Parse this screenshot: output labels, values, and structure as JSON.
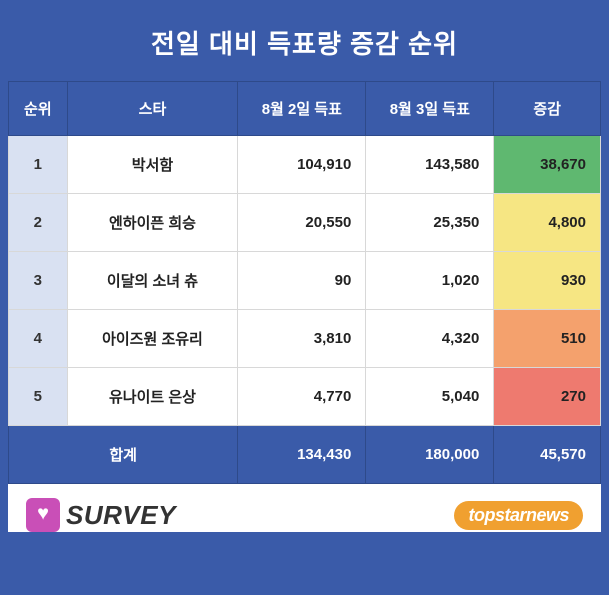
{
  "title": "전일 대비 득표량 증감 순위",
  "columns": {
    "rank": "순위",
    "star": "스타",
    "day1": "8월 2일 득표",
    "day2": "8월 3일 득표",
    "change": "증감"
  },
  "rows": [
    {
      "rank": "1",
      "star": "박서함",
      "day1": "104,910",
      "day2": "143,580",
      "change": "38,670",
      "change_bg": "#5fb870"
    },
    {
      "rank": "2",
      "star": "엔하이픈 희승",
      "day1": "20,550",
      "day2": "25,350",
      "change": "4,800",
      "change_bg": "#f6e683"
    },
    {
      "rank": "3",
      "star": "이달의 소녀 츄",
      "day1": "90",
      "day2": "1,020",
      "change": "930",
      "change_bg": "#f6e683"
    },
    {
      "rank": "4",
      "star": "아이즈원 조유리",
      "day1": "3,810",
      "day2": "4,320",
      "change": "510",
      "change_bg": "#f4a16d"
    },
    {
      "rank": "5",
      "star": "유나이트 은상",
      "day1": "4,770",
      "day2": "5,040",
      "change": "270",
      "change_bg": "#ee7a6f"
    }
  ],
  "total": {
    "label": "합계",
    "day1": "134,430",
    "day2": "180,000",
    "change": "45,570"
  },
  "footer": {
    "survey": "SURVEY",
    "topstar": "topstarnews"
  },
  "colors": {
    "header_bg": "#3a5ba9",
    "rank_bg": "#d9e1f2",
    "white": "#ffffff"
  }
}
